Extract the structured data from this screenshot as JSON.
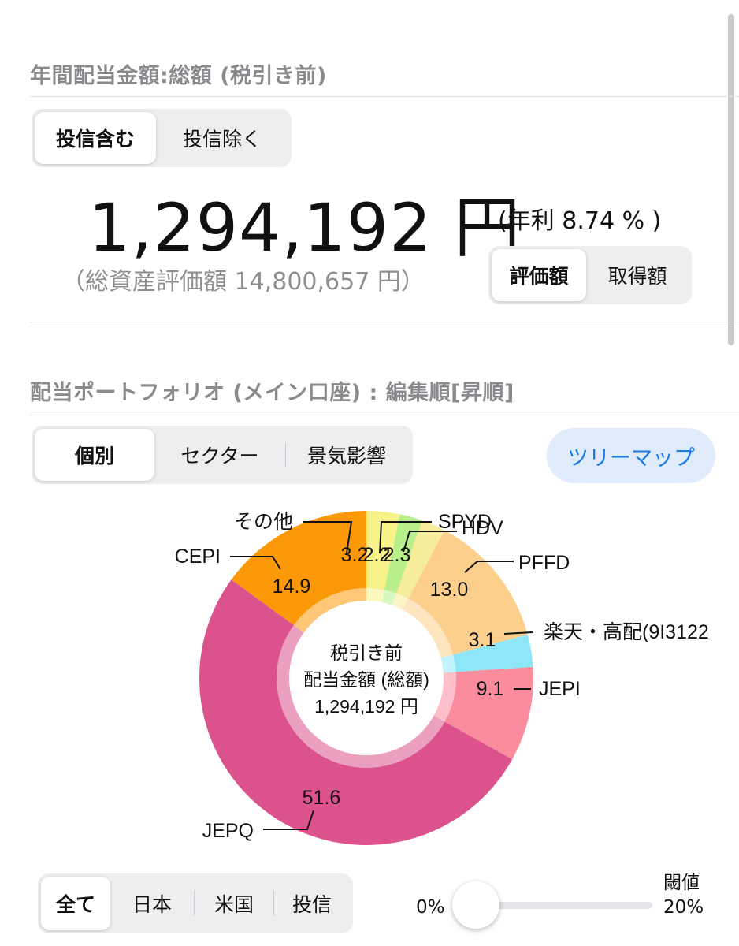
{
  "annual_dividend": {
    "title": "年間配当金額:総額 (税引き前)",
    "toggle": [
      "投信含む",
      "投信除く"
    ],
    "amount": "1,294,192 円",
    "yield": "(年利 8.74 % )",
    "total_assets": "（総資産評価額 14,800,657 円）",
    "basis_toggle": [
      "評価額",
      "取得額"
    ]
  },
  "portfolio": {
    "title": "配当ポートフォリオ (メイン口座) : 編集順[昇順]",
    "view_tabs": [
      "個別",
      "セクター",
      "景気影響"
    ],
    "treemap_button": "ツリーマップ"
  },
  "chart_data": {
    "type": "pie",
    "donut": true,
    "center_text": [
      "税引き前",
      "配当金額 (総額)",
      "1,294,192 円"
    ],
    "slices": [
      {
        "name": "その他",
        "value": 3.2,
        "label": "3.2",
        "color": "#f8f28a"
      },
      {
        "name": "SPYD",
        "value": 2.2,
        "label": "2.2",
        "color": "#b8ef8a"
      },
      {
        "name": "HDV",
        "value": 2.3,
        "label": "2.3",
        "color": "#f6ec9a"
      },
      {
        "name": "PFFD",
        "value": 13.0,
        "label": "13.0",
        "color": "#fccf8c"
      },
      {
        "name": "楽天・高配(9I3122",
        "value": 3.1,
        "label": "3.1",
        "color": "#8ee6f8"
      },
      {
        "name": "JEPI",
        "value": 9.1,
        "label": "9.1",
        "color": "#fb8c9e"
      },
      {
        "name": "JEPQ",
        "value": 51.6,
        "label": "51.6",
        "color": "#dc528c"
      },
      {
        "name": "CEPI",
        "value": 14.9,
        "label": "14.9",
        "color": "#fb9908"
      }
    ]
  },
  "filter": {
    "tabs": [
      "全て",
      "日本",
      "米国",
      "投信"
    ],
    "threshold_label": "閾値",
    "slider_min": "0%",
    "slider_max": "20%",
    "slider_value": 0.0
  },
  "colors": {
    "accent": "#1a7be6",
    "title_gray": "#8a8a8e"
  }
}
